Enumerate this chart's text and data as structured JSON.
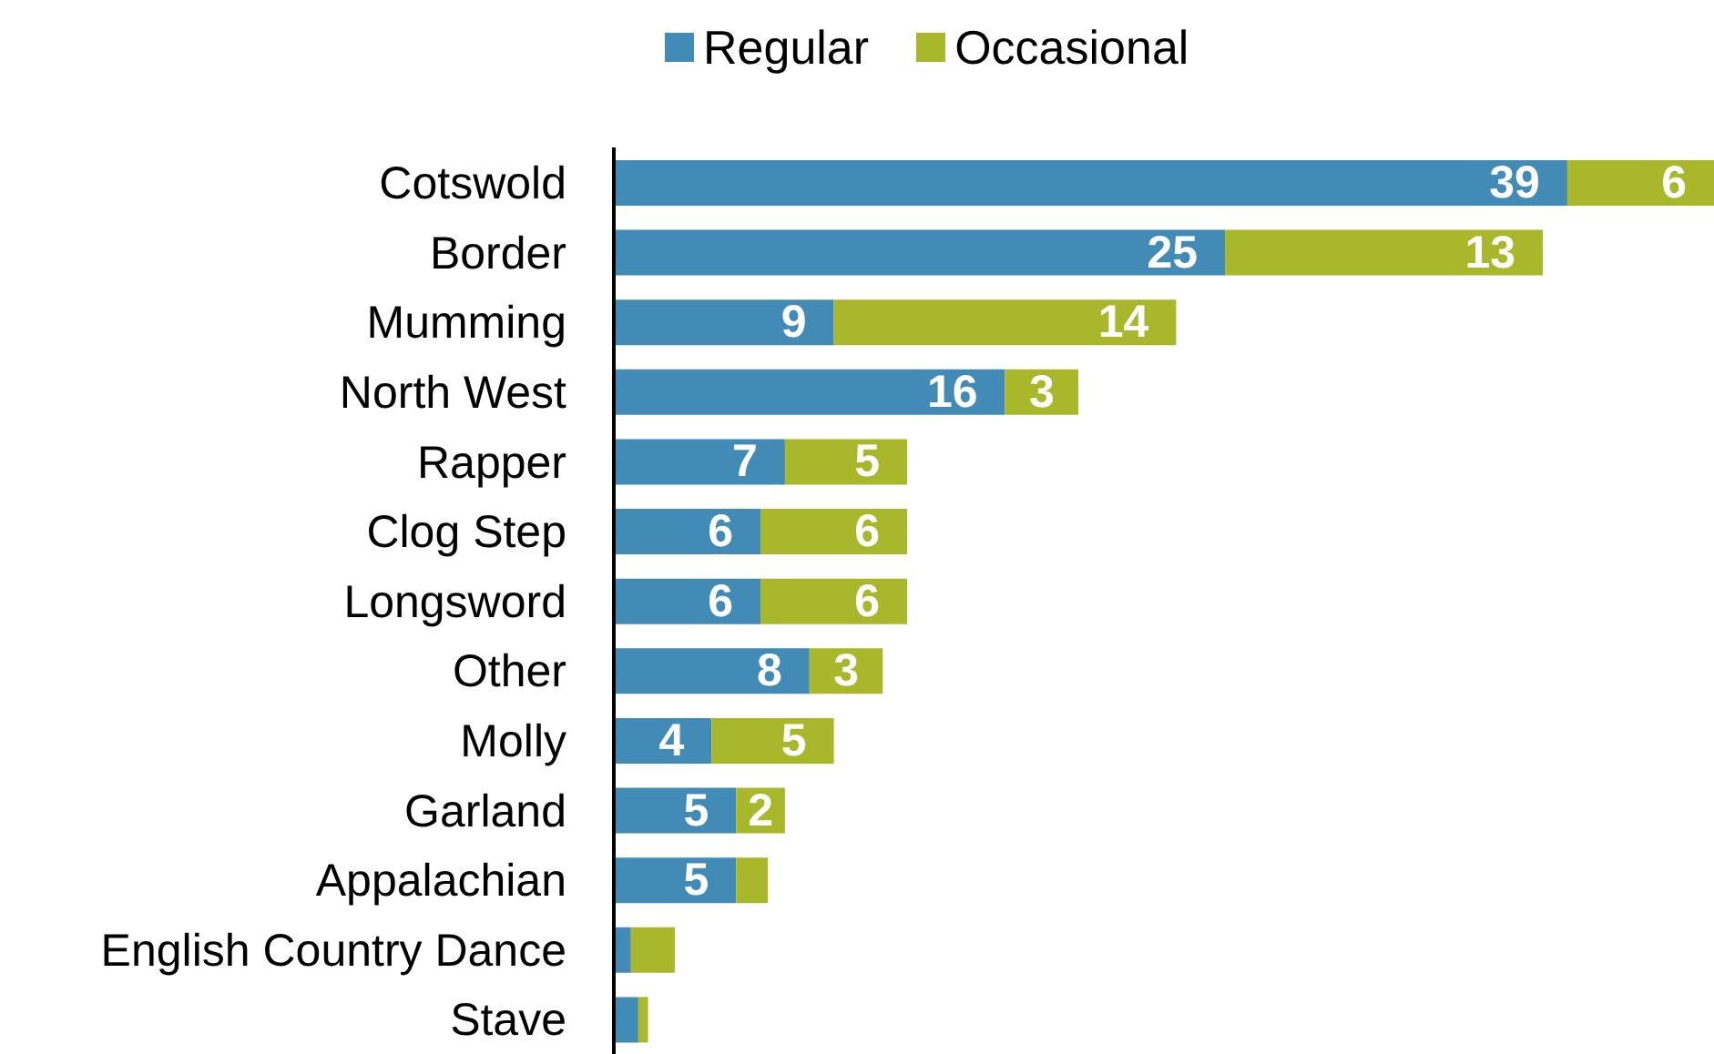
{
  "chart_data": {
    "type": "bar",
    "orientation": "horizontal",
    "stacked": true,
    "legend": "top",
    "tick_labels": "y",
    "categories": [
      "Cotswold",
      "Border",
      "Mumming",
      "North West",
      "Rapper",
      "Clog Step",
      "Longsword",
      "Other",
      "Molly",
      "Garland",
      "Appalachian",
      "English Country Dance",
      "Stave"
    ],
    "series": [
      {
        "name": "Regular",
        "color": "#418bb6",
        "values": [
          39,
          25,
          9,
          16,
          7,
          6,
          6,
          8,
          4,
          5,
          5,
          0.7,
          1
        ],
        "value_labels": [
          "39",
          "25",
          "9",
          "16",
          "7",
          "6",
          "6",
          "8",
          "4",
          "5",
          "5",
          null,
          null
        ]
      },
      {
        "name": "Occasional",
        "color": "#a9b82a",
        "values": [
          6,
          13,
          14,
          3,
          5,
          6,
          6,
          3,
          5,
          2,
          1.3,
          1.8,
          0.4
        ],
        "value_labels": [
          "6",
          "13",
          "14",
          "3",
          "5",
          "6",
          "6",
          "3",
          "5",
          "2",
          null,
          null,
          null
        ]
      }
    ]
  }
}
